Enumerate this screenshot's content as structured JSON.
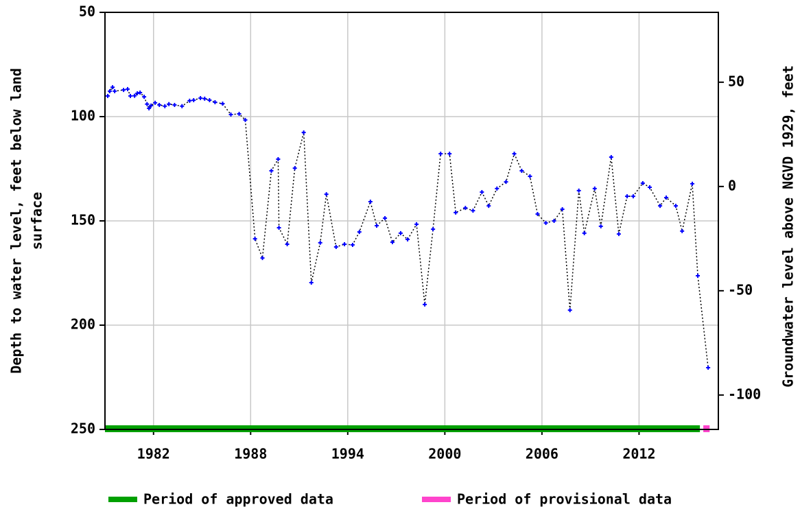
{
  "chart_data": {
    "type": "line",
    "ylabel": [
      "Depth to water level, feet below land",
      "surface"
    ],
    "y2label": "Groundwater level above NGVD 1929, feet",
    "xlim": [
      1979.0,
      2016.9
    ],
    "xticks": [
      1982,
      1988,
      1994,
      2000,
      2006,
      2012
    ],
    "ylim": [
      50,
      250
    ],
    "yticks": [
      50,
      100,
      150,
      200,
      250
    ],
    "y2lim": [
      83.5,
      -116.5
    ],
    "y2ticks": [
      50,
      0,
      -50,
      -100
    ],
    "grid": true,
    "x": [
      1979.17,
      1979.3,
      1979.47,
      1979.6,
      1980.15,
      1980.4,
      1980.57,
      1980.83,
      1981.0,
      1981.17,
      1981.42,
      1981.6,
      1981.72,
      1981.85,
      1982.1,
      1982.36,
      1982.7,
      1982.95,
      1983.3,
      1983.76,
      1984.23,
      1984.48,
      1984.9,
      1985.16,
      1985.46,
      1985.8,
      1986.27,
      1986.78,
      1987.29,
      1987.67,
      1988.27,
      1988.73,
      1989.28,
      1989.7,
      1989.75,
      1990.26,
      1990.73,
      1991.28,
      1991.75,
      1992.3,
      1992.68,
      1993.28,
      1993.8,
      1994.3,
      1994.72,
      1995.4,
      1995.79,
      1996.3,
      1996.76,
      1997.27,
      1997.7,
      1998.25,
      1998.76,
      1999.27,
      1999.74,
      2000.29,
      2000.67,
      2001.27,
      2001.74,
      2002.29,
      2002.71,
      2003.22,
      2003.78,
      2004.29,
      2004.75,
      2005.26,
      2005.73,
      2006.24,
      2006.75,
      2007.26,
      2007.73,
      2008.28,
      2008.62,
      2009.26,
      2009.64,
      2010.28,
      2010.75,
      2011.26,
      2011.64,
      2012.23,
      2012.66,
      2013.3,
      2013.68,
      2014.27,
      2014.66,
      2015.29,
      2015.63,
      2016.27
    ],
    "series": [
      {
        "color": "#0000ff",
        "line_color": "#000000",
        "values": [
          90.1,
          87.8,
          85.9,
          87.8,
          87.2,
          86.8,
          90.1,
          90.0,
          88.8,
          88.5,
          90.5,
          94.0,
          96.0,
          94.7,
          93.4,
          94.4,
          95.0,
          94.0,
          94.4,
          95.0,
          92.4,
          92.1,
          91.1,
          91.4,
          92.1,
          93.1,
          93.8,
          99.0,
          98.7,
          101.6,
          158.6,
          167.8,
          126.0,
          120.4,
          153.3,
          161.2,
          124.7,
          107.6,
          179.6,
          160.5,
          137.2,
          162.5,
          161.2,
          161.5,
          155.3,
          140.8,
          152.3,
          148.7,
          160.2,
          155.9,
          158.9,
          151.6,
          190.1,
          154.0,
          117.8,
          117.8,
          146.0,
          143.8,
          145.1,
          136.2,
          142.8,
          134.5,
          131.3,
          117.8,
          126.0,
          128.6,
          146.7,
          151.0,
          150.0,
          144.4,
          192.8,
          135.5,
          155.9,
          134.5,
          152.6,
          119.4,
          156.3,
          138.2,
          138.2,
          131.9,
          133.9,
          142.8,
          138.8,
          142.8,
          154.9,
          132.2,
          176.3,
          220.4
        ]
      }
    ],
    "periods": [
      {
        "name": "Period of approved data",
        "color": "#00a000",
        "start": 1979.0,
        "end": 2015.76
      },
      {
        "name": "Period of provisional data",
        "color": "#ff44cc",
        "start": 2015.97,
        "end": 2016.36
      }
    ]
  }
}
